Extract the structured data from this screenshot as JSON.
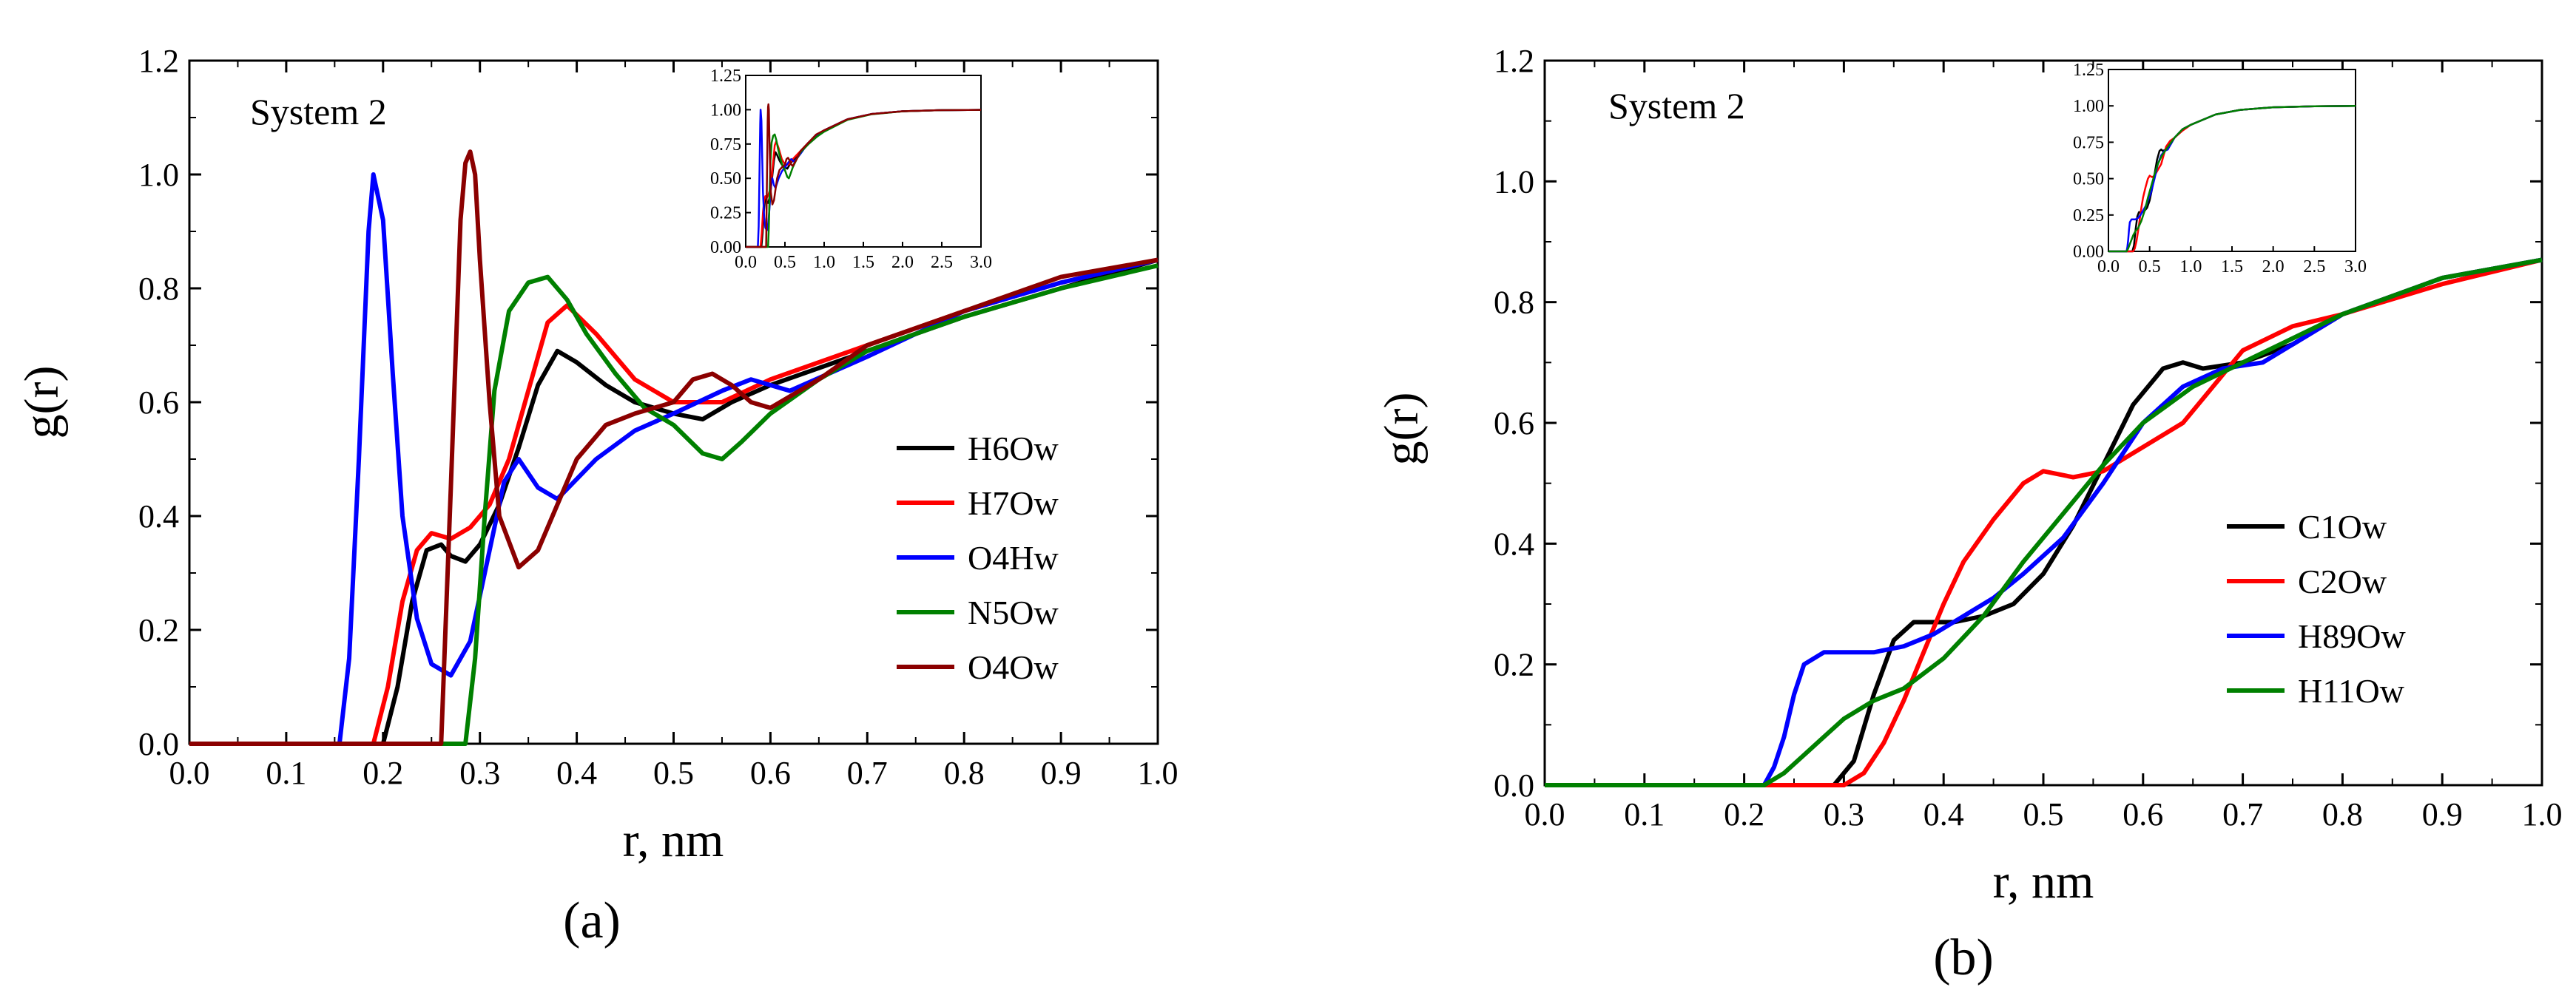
{
  "chart_data": [
    {
      "type": "line",
      "panel_label": "(a)",
      "annotation": "System 2",
      "xlabel": "r, nm",
      "ylabel": "g(r)",
      "xlim": [
        0.0,
        1.0
      ],
      "ylim": [
        0.0,
        1.2
      ],
      "xticks": [
        "0.0",
        "0.1",
        "0.2",
        "0.3",
        "0.4",
        "0.5",
        "0.6",
        "0.7",
        "0.8",
        "0.9",
        "1.0"
      ],
      "yticks": [
        "0.0",
        "0.2",
        "0.4",
        "0.6",
        "0.8",
        "1.0",
        "1.2"
      ],
      "legend_position": "right",
      "series": [
        {
          "name": "H6Ow",
          "color": "#000000",
          "x": [
            0,
            0.2,
            0.215,
            0.23,
            0.245,
            0.26,
            0.27,
            0.285,
            0.3,
            0.32,
            0.34,
            0.36,
            0.38,
            0.4,
            0.43,
            0.46,
            0.5,
            0.53,
            0.56,
            0.6,
            0.7,
            0.8,
            0.9,
            1.0
          ],
          "y": [
            0,
            0,
            0.1,
            0.25,
            0.34,
            0.35,
            0.33,
            0.32,
            0.35,
            0.42,
            0.52,
            0.63,
            0.69,
            0.67,
            0.63,
            0.6,
            0.58,
            0.57,
            0.6,
            0.63,
            0.69,
            0.75,
            0.8,
            0.85
          ]
        },
        {
          "name": "H7Ow",
          "color": "#ff0000",
          "x": [
            0,
            0.19,
            0.205,
            0.22,
            0.235,
            0.25,
            0.27,
            0.29,
            0.31,
            0.33,
            0.35,
            0.37,
            0.39,
            0.42,
            0.46,
            0.5,
            0.55,
            0.6,
            0.7,
            0.8,
            0.9,
            1.0
          ],
          "y": [
            0,
            0,
            0.1,
            0.25,
            0.34,
            0.37,
            0.36,
            0.38,
            0.42,
            0.5,
            0.62,
            0.74,
            0.77,
            0.72,
            0.64,
            0.6,
            0.6,
            0.64,
            0.7,
            0.76,
            0.81,
            0.85
          ]
        },
        {
          "name": "O4Hw",
          "color": "#0000ff",
          "x": [
            0,
            0.155,
            0.165,
            0.175,
            0.185,
            0.19,
            0.2,
            0.21,
            0.22,
            0.235,
            0.25,
            0.27,
            0.29,
            0.31,
            0.325,
            0.34,
            0.36,
            0.38,
            0.42,
            0.46,
            0.5,
            0.55,
            0.58,
            0.62,
            0.7,
            0.8,
            0.9,
            1.0
          ],
          "y": [
            0,
            0,
            0.15,
            0.5,
            0.9,
            1.0,
            0.92,
            0.65,
            0.4,
            0.22,
            0.14,
            0.12,
            0.18,
            0.34,
            0.46,
            0.5,
            0.45,
            0.43,
            0.5,
            0.55,
            0.58,
            0.62,
            0.64,
            0.62,
            0.68,
            0.76,
            0.81,
            0.85
          ]
        },
        {
          "name": "N5Ow",
          "color": "#008000",
          "x": [
            0,
            0.285,
            0.295,
            0.305,
            0.315,
            0.33,
            0.35,
            0.37,
            0.39,
            0.41,
            0.44,
            0.47,
            0.5,
            0.53,
            0.55,
            0.57,
            0.6,
            0.65,
            0.7,
            0.8,
            0.9,
            1.0
          ],
          "y": [
            0,
            0,
            0.15,
            0.4,
            0.62,
            0.76,
            0.81,
            0.82,
            0.78,
            0.72,
            0.65,
            0.59,
            0.56,
            0.51,
            0.5,
            0.53,
            0.58,
            0.64,
            0.69,
            0.75,
            0.8,
            0.84
          ]
        },
        {
          "name": "O4Ow",
          "color": "#8b0000",
          "x": [
            0,
            0.26,
            0.27,
            0.28,
            0.285,
            0.29,
            0.295,
            0.3,
            0.31,
            0.32,
            0.34,
            0.36,
            0.38,
            0.4,
            0.43,
            0.46,
            0.5,
            0.52,
            0.54,
            0.56,
            0.58,
            0.6,
            0.65,
            0.7,
            0.8,
            0.9,
            1.0
          ],
          "y": [
            0,
            0,
            0.45,
            0.92,
            1.02,
            1.04,
            1.0,
            0.85,
            0.6,
            0.4,
            0.31,
            0.34,
            0.42,
            0.5,
            0.56,
            0.58,
            0.6,
            0.64,
            0.65,
            0.63,
            0.6,
            0.59,
            0.64,
            0.7,
            0.76,
            0.82,
            0.85
          ]
        }
      ],
      "inset": {
        "xlim": [
          0.0,
          3.0
        ],
        "ylim": [
          0.0,
          1.25
        ],
        "xticks": [
          "0.0",
          "0.5",
          "1.0",
          "1.5",
          "2.0",
          "2.5",
          "3.0"
        ],
        "yticks": [
          "0.00",
          "0.25",
          "0.50",
          "0.75",
          "1.00",
          "1.25"
        ]
      }
    },
    {
      "type": "line",
      "panel_label": "(b)",
      "annotation": "System 2",
      "xlabel": "r, nm",
      "ylabel": "g(r)",
      "xlim": [
        0.0,
        1.0
      ],
      "ylim": [
        0.0,
        1.2
      ],
      "xticks": [
        "0.0",
        "0.1",
        "0.2",
        "0.3",
        "0.4",
        "0.5",
        "0.6",
        "0.7",
        "0.8",
        "0.9",
        "1.0"
      ],
      "yticks": [
        "0.0",
        "0.2",
        "0.4",
        "0.6",
        "0.8",
        "1.0",
        "1.2"
      ],
      "legend_position": "right",
      "series": [
        {
          "name": "C1Ow",
          "color": "#000000",
          "x": [
            0,
            0.29,
            0.31,
            0.33,
            0.35,
            0.37,
            0.39,
            0.41,
            0.44,
            0.47,
            0.5,
            0.53,
            0.56,
            0.59,
            0.62,
            0.64,
            0.66,
            0.7,
            0.75,
            0.8,
            0.9,
            1.0
          ],
          "y": [
            0,
            0,
            0.04,
            0.15,
            0.24,
            0.27,
            0.27,
            0.27,
            0.28,
            0.3,
            0.35,
            0.43,
            0.53,
            0.63,
            0.69,
            0.7,
            0.69,
            0.7,
            0.73,
            0.78,
            0.84,
            0.87
          ]
        },
        {
          "name": "C2Ow",
          "color": "#ff0000",
          "x": [
            0,
            0.3,
            0.32,
            0.34,
            0.36,
            0.38,
            0.4,
            0.42,
            0.45,
            0.48,
            0.5,
            0.53,
            0.56,
            0.6,
            0.64,
            0.67,
            0.7,
            0.75,
            0.8,
            0.9,
            1.0
          ],
          "y": [
            0,
            0,
            0.02,
            0.07,
            0.14,
            0.22,
            0.3,
            0.37,
            0.44,
            0.5,
            0.52,
            0.51,
            0.52,
            0.56,
            0.6,
            0.66,
            0.72,
            0.76,
            0.78,
            0.83,
            0.87
          ]
        },
        {
          "name": "H89Ow",
          "color": "#0000ff",
          "x": [
            0,
            0.22,
            0.23,
            0.24,
            0.25,
            0.26,
            0.28,
            0.3,
            0.33,
            0.36,
            0.39,
            0.42,
            0.45,
            0.48,
            0.52,
            0.56,
            0.6,
            0.64,
            0.68,
            0.72,
            0.8,
            0.9,
            1.0
          ],
          "y": [
            0,
            0,
            0.03,
            0.08,
            0.15,
            0.2,
            0.22,
            0.22,
            0.22,
            0.23,
            0.25,
            0.28,
            0.31,
            0.35,
            0.41,
            0.5,
            0.6,
            0.66,
            0.69,
            0.7,
            0.78,
            0.84,
            0.87
          ]
        },
        {
          "name": "H11Ow",
          "color": "#008000",
          "x": [
            0,
            0.22,
            0.24,
            0.26,
            0.28,
            0.3,
            0.33,
            0.36,
            0.4,
            0.44,
            0.48,
            0.52,
            0.56,
            0.6,
            0.65,
            0.7,
            0.8,
            0.9,
            1.0
          ],
          "y": [
            0,
            0,
            0.02,
            0.05,
            0.08,
            0.11,
            0.14,
            0.16,
            0.21,
            0.28,
            0.37,
            0.45,
            0.53,
            0.6,
            0.66,
            0.7,
            0.78,
            0.84,
            0.87
          ]
        }
      ],
      "inset": {
        "xlim": [
          0.0,
          3.0
        ],
        "ylim": [
          0.0,
          1.25
        ],
        "xticks": [
          "0.0",
          "0.5",
          "1.0",
          "1.5",
          "2.0",
          "2.5",
          "3.0"
        ],
        "yticks": [
          "0.00",
          "0.25",
          "0.50",
          "0.75",
          "1.00",
          "1.25"
        ]
      }
    }
  ]
}
